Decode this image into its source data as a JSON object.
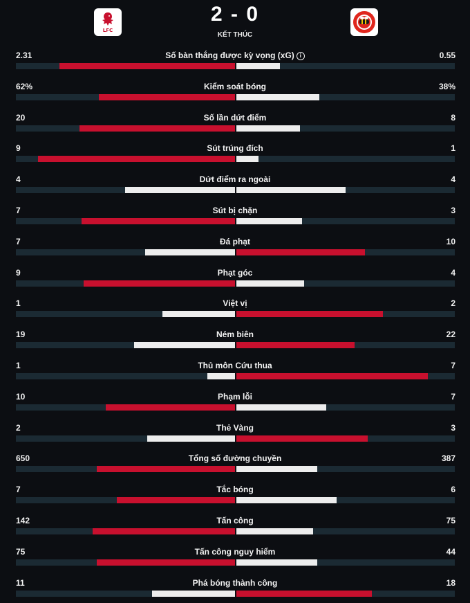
{
  "match": {
    "score": "2 - 0",
    "status": "KẾT THÚC",
    "home_team": {
      "logo_text": "LFC",
      "logo_color": "#c8102e"
    },
    "away_team": {
      "logo_color": "#e0261d"
    }
  },
  "colors": {
    "winner": "#c8102e",
    "loser": "#ededed",
    "track": "#1b2a33"
  },
  "stats": [
    {
      "label": "Số bàn thắng được kỳ vọng (xG)",
      "home": "2.31",
      "away": "0.55",
      "home_frac": 0.8,
      "away_frac": 0.2,
      "info": "i"
    },
    {
      "label": "Kiểm soát bóng",
      "home": "62%",
      "away": "38%",
      "home_frac": 0.62,
      "away_frac": 0.38
    },
    {
      "label": "Số lần dứt điểm",
      "home": "20",
      "away": "8",
      "home_frac": 0.71,
      "away_frac": 0.29
    },
    {
      "label": "Sút trúng đích",
      "home": "9",
      "away": "1",
      "home_frac": 0.9,
      "away_frac": 0.1
    },
    {
      "label": "Dứt điểm ra ngoài",
      "home": "4",
      "away": "4",
      "home_frac": 0.5,
      "away_frac": 0.5
    },
    {
      "label": "Sút bị chặn",
      "home": "7",
      "away": "3",
      "home_frac": 0.7,
      "away_frac": 0.3
    },
    {
      "label": "Đá phạt",
      "home": "7",
      "away": "10",
      "home_frac": 0.41,
      "away_frac": 0.59
    },
    {
      "label": "Phạt góc",
      "home": "9",
      "away": "4",
      "home_frac": 0.69,
      "away_frac": 0.31
    },
    {
      "label": "Việt vị",
      "home": "1",
      "away": "2",
      "home_frac": 0.33,
      "away_frac": 0.67
    },
    {
      "label": "Ném biên",
      "home": "19",
      "away": "22",
      "home_frac": 0.46,
      "away_frac": 0.54
    },
    {
      "label": "Thủ môn Cứu thua",
      "home": "1",
      "away": "7",
      "home_frac": 0.125,
      "away_frac": 0.875
    },
    {
      "label": "Phạm lỗi",
      "home": "10",
      "away": "7",
      "home_frac": 0.59,
      "away_frac": 0.41
    },
    {
      "label": "Thẻ Vàng",
      "home": "2",
      "away": "3",
      "home_frac": 0.4,
      "away_frac": 0.6
    },
    {
      "label": "Tổng số đường chuyền",
      "home": "650",
      "away": "387",
      "home_frac": 0.63,
      "away_frac": 0.37
    },
    {
      "label": "Tắc bóng",
      "home": "7",
      "away": "6",
      "home_frac": 0.54,
      "away_frac": 0.46
    },
    {
      "label": "Tấn công",
      "home": "142",
      "away": "75",
      "home_frac": 0.65,
      "away_frac": 0.35
    },
    {
      "label": "Tấn công nguy hiểm",
      "home": "75",
      "away": "44",
      "home_frac": 0.63,
      "away_frac": 0.37
    },
    {
      "label": "Phá bóng thành công",
      "home": "11",
      "away": "18",
      "home_frac": 0.38,
      "away_frac": 0.62
    }
  ]
}
